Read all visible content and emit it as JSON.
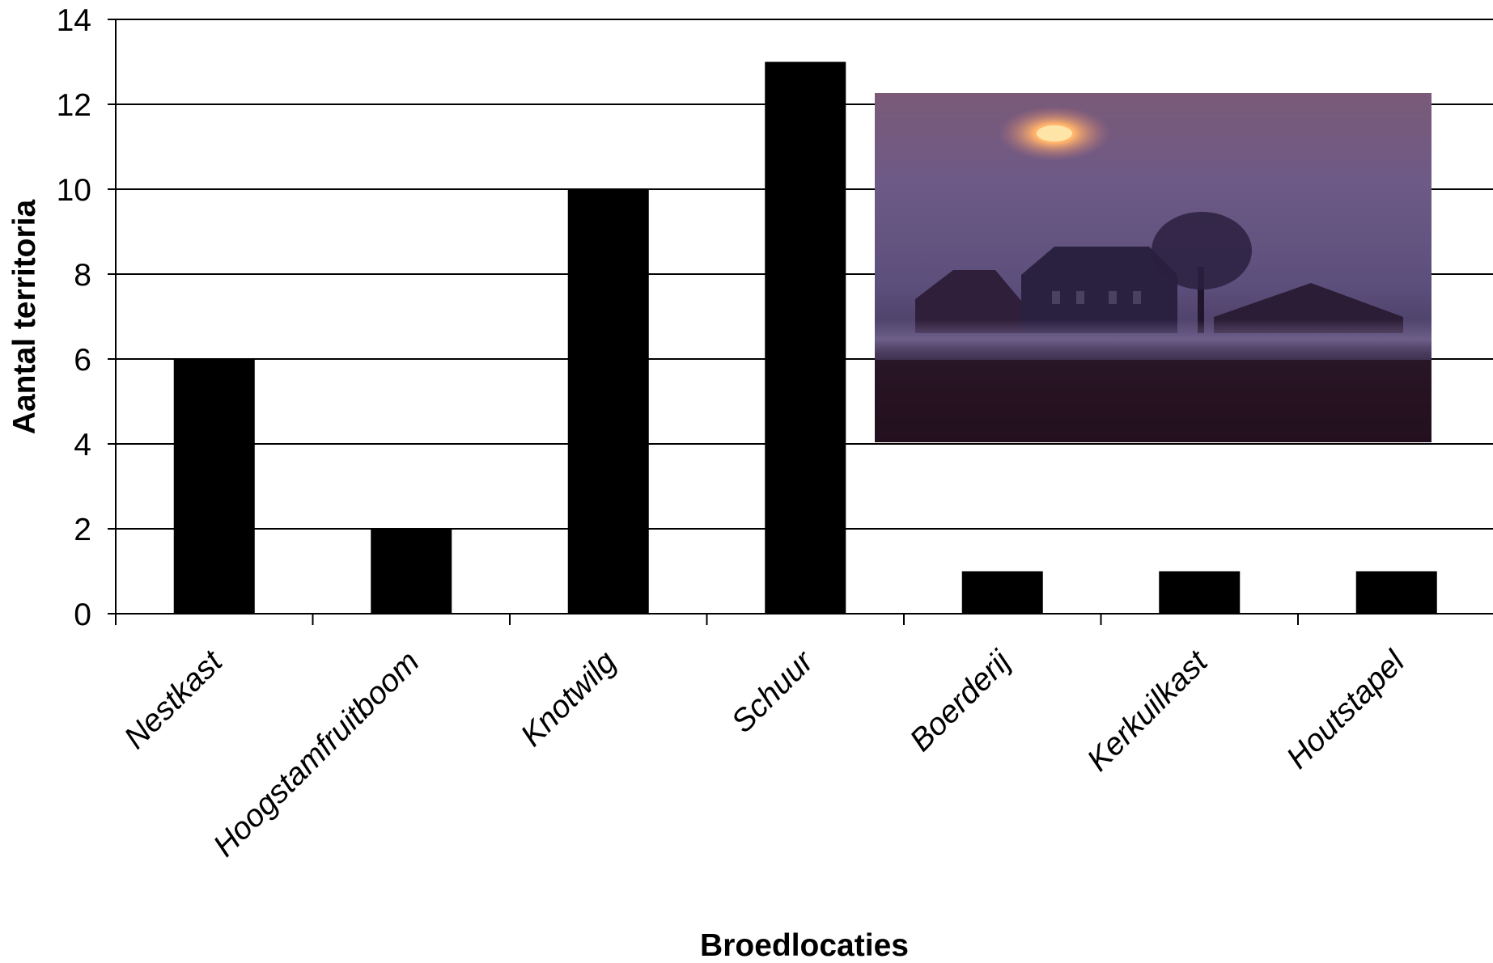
{
  "chart_data": {
    "type": "bar",
    "categories": [
      "Nestkast",
      "Hoogstamfruitboom",
      "Knotwilg",
      "Schuur",
      "Boerderij",
      "Kerkuilkast",
      "Houtstapel"
    ],
    "values": [
      6,
      2,
      10,
      13,
      1,
      1,
      1
    ],
    "xlabel": "Broedlocaties",
    "ylabel": "Aantal territoria",
    "ylim": [
      0,
      14
    ],
    "yticks": [
      0,
      2,
      4,
      6,
      8,
      10,
      12,
      14
    ],
    "grid": true,
    "bar_color": "#000000",
    "legend": "none",
    "inset_photo": "misty farmhouse at sunset"
  }
}
